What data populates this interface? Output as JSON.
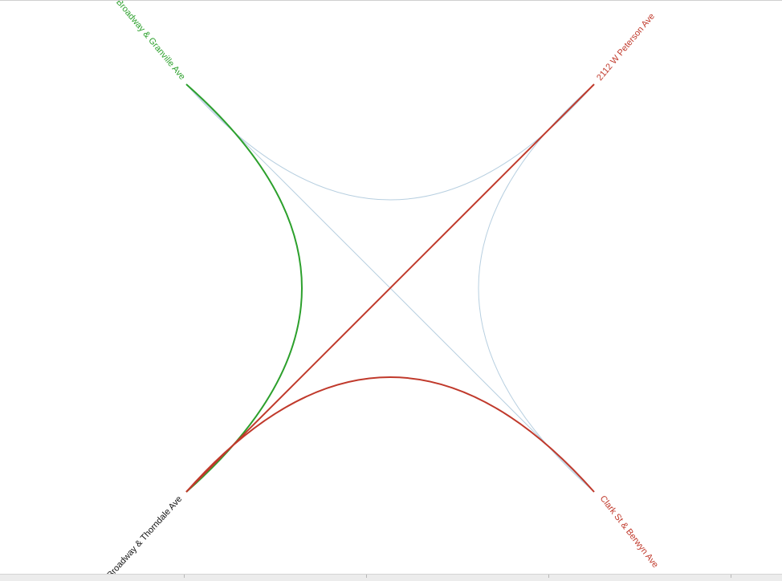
{
  "colors": {
    "green": "#2ca02c",
    "red": "#c0392b",
    "black": "#111111",
    "faint_blue": "#b7cfe0"
  },
  "nodes": {
    "top_left": {
      "label": "Broadway & Granville Ave",
      "color": "green"
    },
    "top_right": {
      "label": "2112 W Peterson Ave",
      "color": "red"
    },
    "bottom_left": {
      "label": "Broadway & Thorndale Ave",
      "color": "black"
    },
    "bottom_right": {
      "label": "Clark St & Berwyn Ave",
      "color": "red"
    }
  },
  "edges": [
    {
      "from": "top_left",
      "to": "top_right",
      "style": "faint"
    },
    {
      "from": "top_left",
      "to": "bottom_right",
      "style": "faint"
    },
    {
      "from": "top_right",
      "to": "bottom_right",
      "style": "faint"
    },
    {
      "from": "top_left",
      "to": "bottom_left",
      "style": "green"
    },
    {
      "from": "bottom_left",
      "to": "top_right",
      "style": "red"
    },
    {
      "from": "bottom_left",
      "to": "bottom_right",
      "style": "red"
    }
  ]
}
